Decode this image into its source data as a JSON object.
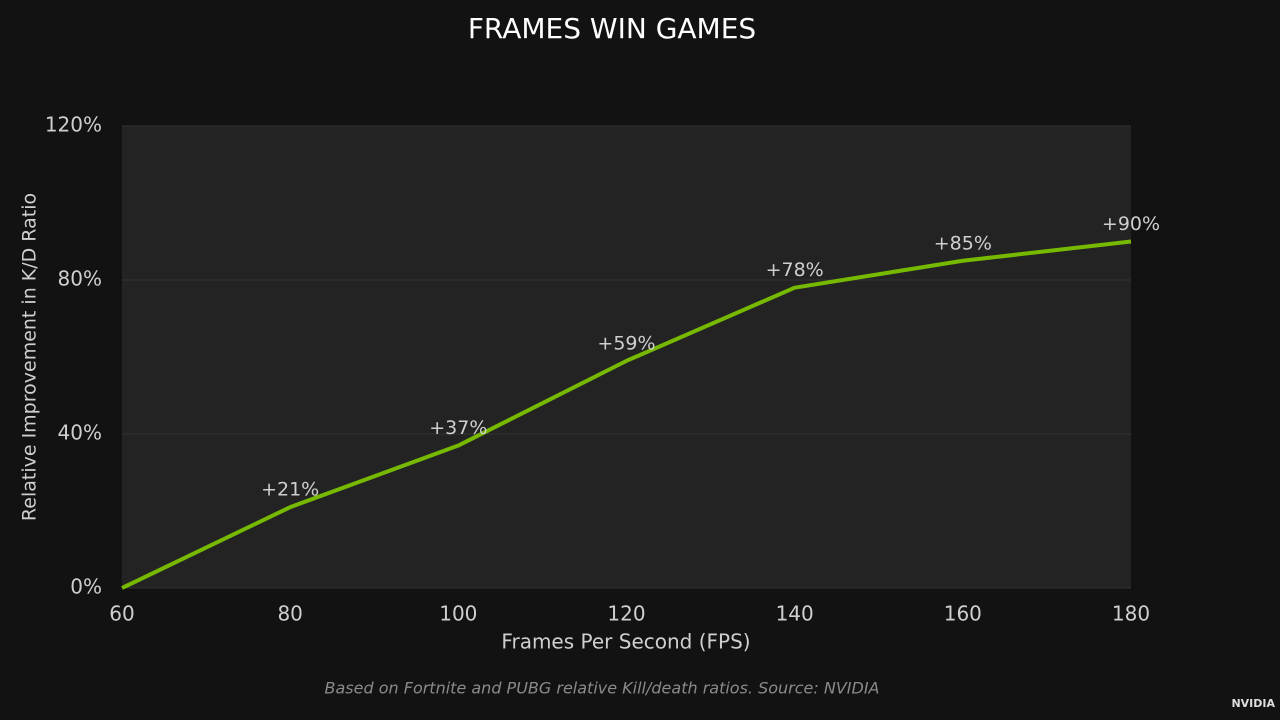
{
  "chart_data": {
    "type": "line",
    "title": "FRAMES WIN GAMES",
    "x_label": "Frames Per Second (FPS)",
    "y_label": "Relative Improvement in K/D Ratio",
    "x": [
      60,
      80,
      100,
      120,
      140,
      160,
      180
    ],
    "values": [
      0,
      21,
      37,
      59,
      78,
      85,
      90
    ],
    "value_labels": [
      null,
      "+21%",
      "+37%",
      "+59%",
      "+78%",
      "+85%",
      "+90%"
    ],
    "color": "#76b900",
    "xlim": [
      60,
      180
    ],
    "xticks": [
      60,
      80,
      100,
      120,
      140,
      160,
      180
    ],
    "ylim": [
      0,
      120
    ],
    "yticks": [
      {
        "value": 0,
        "label": "0%"
      },
      {
        "value": 40,
        "label": "40%"
      },
      {
        "value": 80,
        "label": "80%"
      },
      {
        "value": 120,
        "label": "120%"
      }
    ],
    "grid": true,
    "footnote": "Based on Fortnite and PUBG relative Kill/death ratios. Source: NVIDIA",
    "brand": "NVIDIA"
  }
}
